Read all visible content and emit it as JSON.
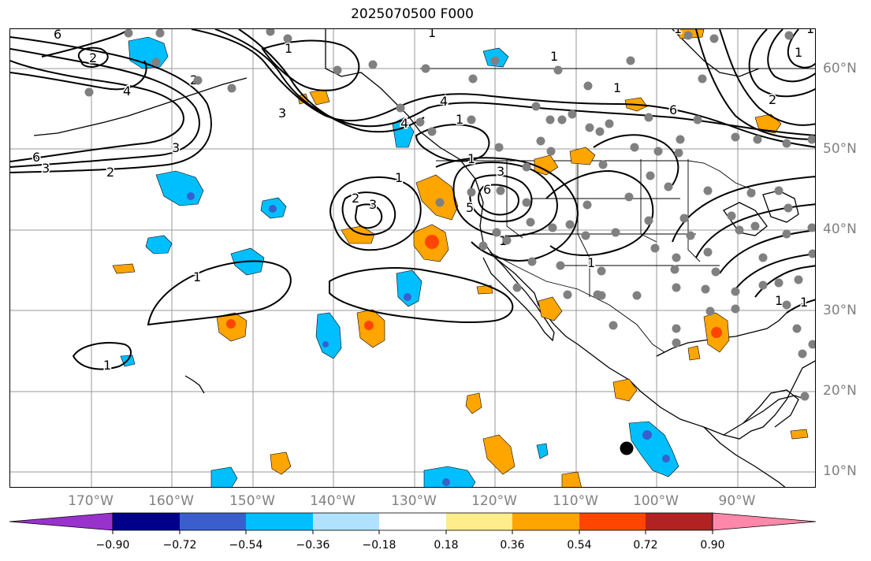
{
  "title": "2025070500 F000",
  "lat_labels": [
    "60°N",
    "50°N",
    "40°N",
    "30°N",
    "20°N",
    "10°N"
  ],
  "lon_labels": [
    "170°W",
    "160°W",
    "150°W",
    "140°W",
    "130°W",
    "120°W",
    "110°W",
    "100°W",
    "90°W"
  ],
  "colorbar": {
    "ticks": [
      "−0.90",
      "−0.72",
      "−0.54",
      "−0.36",
      "−0.18",
      "0.18",
      "0.36",
      "0.54",
      "0.72",
      "0.90"
    ],
    "colors": [
      "#9932cc",
      "#00008b",
      "#3a5fcd",
      "#00bfff",
      "#b0e2ff",
      "#ffffff",
      "#ffec8b",
      "#ffa500",
      "#ff4500",
      "#b22222",
      "#ff88aa"
    ]
  },
  "contour_labels": [
    "6",
    "2",
    "2",
    "4",
    "4",
    "3",
    "3",
    "1",
    "1",
    "2",
    "6",
    "3",
    "2",
    "3",
    "1",
    "1",
    "3",
    "1",
    "5",
    "6",
    "2",
    "4",
    "6",
    "1",
    "1",
    "1",
    "1",
    "1",
    "1",
    "1",
    "1",
    "1",
    "1",
    "1"
  ]
}
